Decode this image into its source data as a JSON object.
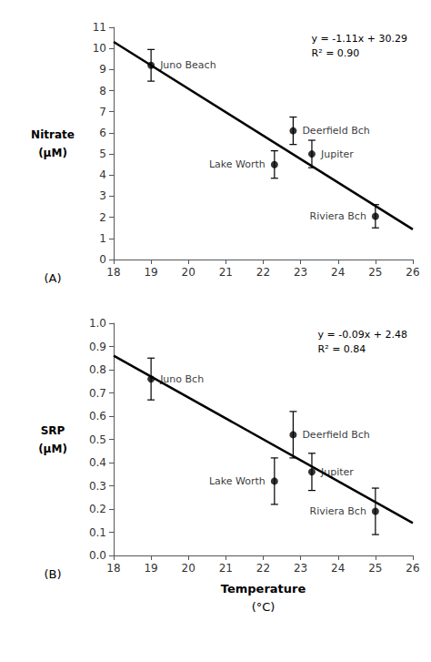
{
  "chart_data": [
    {
      "type": "scatter",
      "ylabel": "Nitrate\n(μM)",
      "panel_label": "(A)",
      "annotation": "y = -1.11x + 30.29\nR² = 0.90",
      "xlim": [
        18,
        26
      ],
      "xticks": [
        18,
        19,
        20,
        21,
        22,
        23,
        24,
        25,
        26
      ],
      "ylim": [
        0,
        11
      ],
      "yticks": [
        0,
        1,
        2,
        3,
        4,
        5,
        6,
        7,
        8,
        9,
        10,
        11
      ],
      "grid": false,
      "series": [
        {
          "type": "scatter",
          "color": "#000000",
          "marker": "circle",
          "x": [
            19.0,
            22.3,
            22.8,
            23.3,
            25.0
          ],
          "values": [
            9.2,
            4.5,
            6.1,
            5.0,
            2.05
          ],
          "yerr": [
            0.75,
            0.65,
            0.65,
            0.65,
            0.55
          ],
          "labels": [
            "Juno Beach",
            "Lake Worth",
            "Deerfield Bch",
            "Jupiter",
            "Riviera Bch"
          ]
        },
        {
          "type": "line",
          "color": "#000000",
          "x": [
            18,
            26
          ],
          "values": [
            10.31,
            1.43
          ]
        }
      ]
    },
    {
      "type": "scatter",
      "ylabel": "SRP\n(μM)",
      "panel_label": "(B)",
      "annotation": "y = -0.09x + 2.48\nR² = 0.84",
      "xlabel": "Temperature\n(°C)",
      "xlim": [
        18,
        26
      ],
      "xticks": [
        18,
        19,
        20,
        21,
        22,
        23,
        24,
        25,
        26
      ],
      "ylim": [
        0.0,
        1.0
      ],
      "yticks": [
        {
          "value": 0.0,
          "label": "0.0"
        },
        0.1,
        0.2,
        0.3,
        0.4,
        0.5,
        0.6,
        0.7,
        0.8,
        0.9,
        {
          "value": 1.0,
          "label": "1.0"
        }
      ],
      "grid": false,
      "series": [
        {
          "type": "scatter",
          "color": "#000000",
          "marker": "circle",
          "x": [
            19.0,
            22.3,
            22.8,
            23.3,
            25.0
          ],
          "values": [
            0.76,
            0.32,
            0.52,
            0.36,
            0.19
          ],
          "yerr": [
            0.09,
            0.1,
            0.1,
            0.08,
            0.1
          ],
          "labels": [
            "Juno Bch",
            "Lake Worth",
            "Deerfield Bch",
            "Jupiter",
            "Riviera Bch"
          ]
        },
        {
          "type": "line",
          "color": "#000000",
          "x": [
            18,
            26
          ],
          "values": [
            0.86,
            0.14
          ]
        }
      ]
    }
  ]
}
